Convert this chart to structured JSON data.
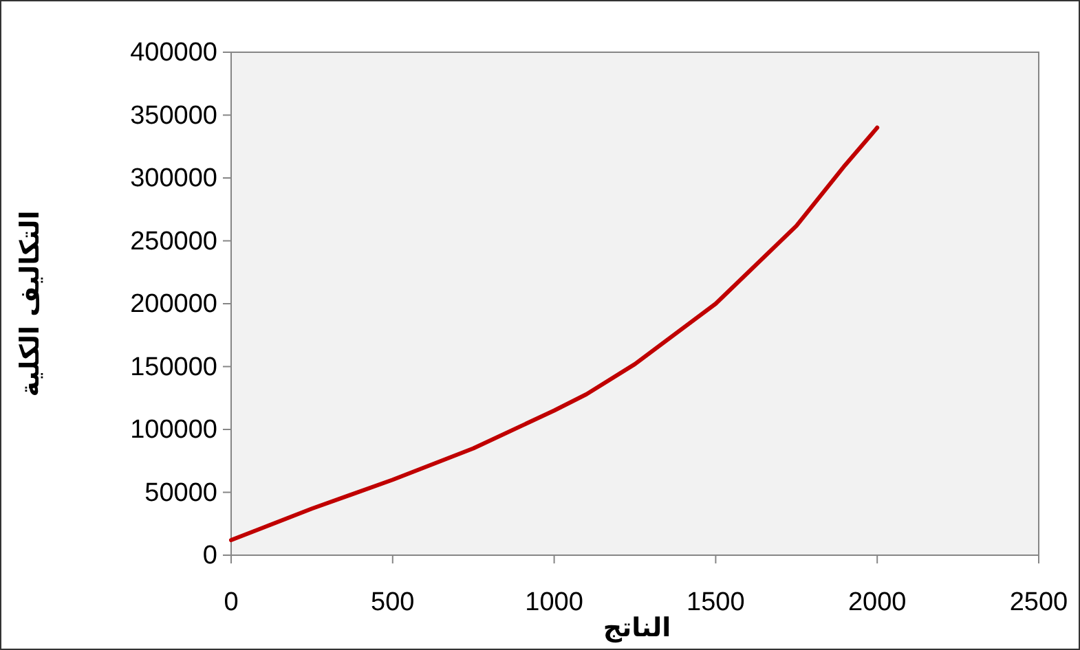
{
  "chart_data": {
    "type": "line",
    "xlabel": "الناتج",
    "ylabel": "التكاليف الكلية",
    "series": [
      {
        "color": "#c00000",
        "x": [
          0,
          100,
          250,
          500,
          750,
          1000,
          1100,
          1250,
          1500,
          1750,
          1900,
          2000
        ],
        "values": [
          12000,
          22000,
          37000,
          60000,
          85000,
          115000,
          128000,
          152000,
          200000,
          262000,
          310000,
          340000
        ]
      }
    ],
    "xlim": [
      0,
      2500
    ],
    "xticks": [
      0,
      500,
      1000,
      1500,
      2000,
      2500
    ],
    "ylim": [
      0,
      400000
    ],
    "yticks": [
      0,
      50000,
      100000,
      150000,
      200000,
      250000,
      300000,
      350000,
      400000
    ],
    "grid": false,
    "marker": "none",
    "line_style": "solid"
  }
}
